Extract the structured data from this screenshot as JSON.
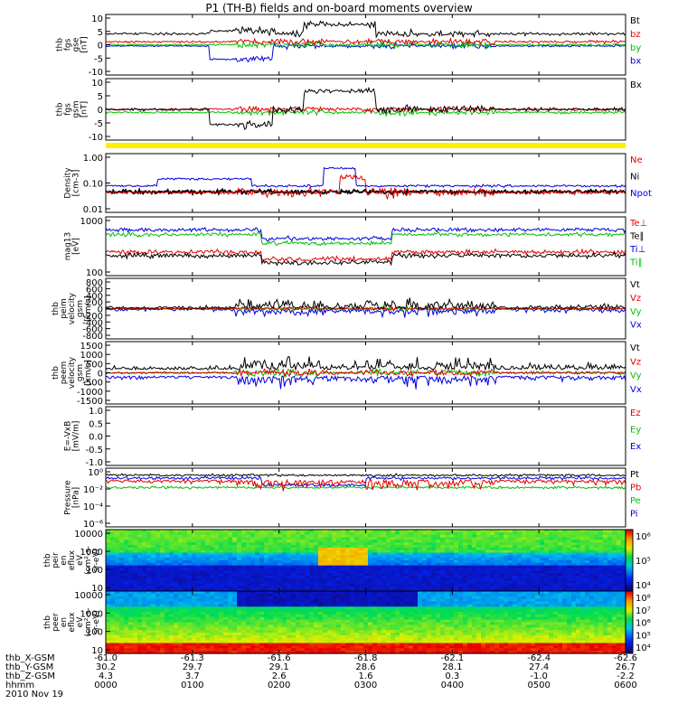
{
  "title": "P1 (TH-B) fields and on-board moments overview",
  "colors": {
    "black": "#000000",
    "red": "#e00000",
    "green": "#00c000",
    "blue": "#0000e0",
    "yellow": "#ffee00"
  },
  "panels": [
    {
      "id": "fgs-gse",
      "ylabel": [
        "thb",
        "fgs",
        "gse",
        "[nT]"
      ],
      "yticks": [
        "10",
        "5",
        "0",
        "-5",
        "-10"
      ],
      "ylim": [
        -10,
        10
      ],
      "legend": [
        {
          "label": "Bt",
          "color": "#000000"
        },
        {
          "label": "bz",
          "color": "#e00000"
        },
        {
          "label": "by",
          "color": "#00c000"
        },
        {
          "label": "bx",
          "color": "#0000e0"
        }
      ]
    },
    {
      "id": "fgs-gsm",
      "ylabel": [
        "thb",
        "fgs",
        "gsm",
        "[nT]"
      ],
      "yticks": [
        "10",
        "5",
        "0",
        "-5",
        "-10"
      ],
      "ylim": [
        -10,
        10
      ],
      "legend": [
        {
          "label": "Bx",
          "color": "#000000"
        }
      ]
    },
    {
      "id": "density",
      "ylabel": [
        "Density",
        "[cm-3]"
      ],
      "yticks": [
        "1.00",
        "0.10",
        "0.01"
      ],
      "log": true,
      "legend": [
        {
          "label": "Ne",
          "color": "#e00000"
        },
        {
          "label": "Ni",
          "color": "#000000"
        },
        {
          "label": "Npot",
          "color": "#0000e0"
        }
      ]
    },
    {
      "id": "temperature",
      "ylabel": [
        "mag13",
        "[eV]"
      ],
      "yticks": [
        "1000",
        "100"
      ],
      "log": true,
      "legend": [
        {
          "label": "Te⊥",
          "color": "#e00000"
        },
        {
          "label": "Te∥",
          "color": "#000000"
        },
        {
          "label": "Ti⊥",
          "color": "#0000e0"
        },
        {
          "label": "Ti∥",
          "color": "#00c000"
        }
      ]
    },
    {
      "id": "peim-velocity",
      "ylabel": [
        "thb",
        "peim",
        "velocity",
        "gsm",
        "[km/s]"
      ],
      "yticks": [
        "800",
        "600",
        "400",
        "200",
        "0",
        "-200",
        "-400",
        "-600",
        "-800"
      ],
      "ylim": [
        -800,
        800
      ],
      "legend": [
        {
          "label": "Vt",
          "color": "#000000"
        },
        {
          "label": "Vz",
          "color": "#e00000"
        },
        {
          "label": "Vy",
          "color": "#00c000"
        },
        {
          "label": "Vx",
          "color": "#0000e0"
        }
      ]
    },
    {
      "id": "peem-velocity",
      "ylabel": [
        "thb",
        "peem",
        "velocity",
        "gsm",
        "[km/s]"
      ],
      "yticks": [
        "1500",
        "1000",
        "500",
        "0",
        "-500",
        "-1000",
        "-1500"
      ],
      "ylim": [
        -1500,
        1500
      ],
      "legend": [
        {
          "label": "Vt",
          "color": "#000000"
        },
        {
          "label": "Vz",
          "color": "#e00000"
        },
        {
          "label": "Vy",
          "color": "#00c000"
        },
        {
          "label": "Vx",
          "color": "#0000e0"
        }
      ]
    },
    {
      "id": "efield",
      "ylabel": [
        "E=-VxB",
        "[mV/m]"
      ],
      "yticks": [
        "1.0",
        "0.5",
        "0.0",
        "-0.5",
        "-1.0"
      ],
      "ylim": [
        -1,
        1
      ],
      "legend": [
        {
          "label": "Ez",
          "color": "#e00000"
        },
        {
          "label": "Ey",
          "color": "#00c000"
        },
        {
          "label": "Ex",
          "color": "#0000e0"
        }
      ]
    },
    {
      "id": "pressure",
      "ylabel": [
        "Pressure",
        "[nPa]"
      ],
      "yticks": [
        "10⁰",
        "10⁻²",
        "10⁻⁴",
        "10⁻⁶"
      ],
      "log": true,
      "legend": [
        {
          "label": "Pt",
          "color": "#000000"
        },
        {
          "label": "Pb",
          "color": "#e00000"
        },
        {
          "label": "Pe",
          "color": "#00c000"
        },
        {
          "label": "Pi",
          "color": "#0000e0"
        }
      ]
    },
    {
      "id": "peir-spec",
      "ylabel": [
        "thb",
        "peir",
        "en",
        "eflux",
        "eV",
        "(cm²-s-",
        "sr-eV)"
      ],
      "yticks": [
        "10000",
        "1000",
        "100",
        "10"
      ],
      "colorbar_ticks": [
        "10⁶",
        "10⁵",
        "10⁴"
      ]
    },
    {
      "id": "peer-spec",
      "ylabel": [
        "thb",
        "peer",
        "en",
        "eflux",
        "eV",
        "(cm²-s-",
        "sr-eV)"
      ],
      "yticks": [
        "10000",
        "1000",
        "100",
        "10"
      ],
      "colorbar_ticks": [
        "10⁸",
        "10⁷",
        "10⁶",
        "10⁵",
        "10⁴"
      ]
    }
  ],
  "footer": {
    "rows": [
      {
        "label": "thb_X-GSM",
        "values": [
          "-61.0",
          "-61.3",
          "-61.6",
          "-61.8",
          "-62.1",
          "-62.4",
          "-62.6"
        ]
      },
      {
        "label": "thb_Y-GSM",
        "values": [
          "30.2",
          "29.7",
          "29.1",
          "28.6",
          "28.1",
          "27.4",
          "26.7"
        ]
      },
      {
        "label": "thb_Z-GSM",
        "values": [
          "4.3",
          "3.7",
          "2.6",
          "1.6",
          "0.3",
          "-1.0",
          "-2.2"
        ]
      },
      {
        "label": "hhmm",
        "values": [
          "0000",
          "0100",
          "0200",
          "0300",
          "0400",
          "0500",
          "0600"
        ]
      }
    ],
    "date": "2010 Nov 19"
  },
  "chart_data": {
    "type": "line",
    "title": "P1 (TH-B) fields and on-board moments overview",
    "x": [
      "0000",
      "0100",
      "0200",
      "0300",
      "0400",
      "0500",
      "0600"
    ],
    "xlabel": "hhmm",
    "stacked_panels": 10
  }
}
